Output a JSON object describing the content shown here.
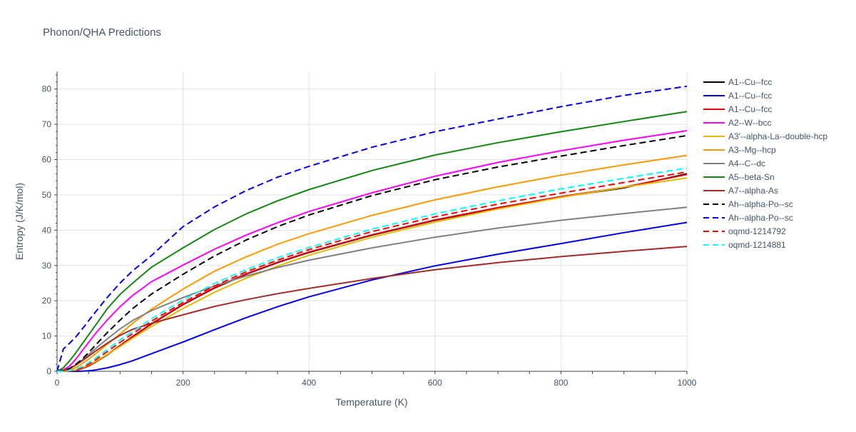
{
  "chart_data": {
    "type": "line",
    "title": "Phonon/QHA Predictions",
    "xlabel": "Temperature (K)",
    "ylabel": "Entropy (J/K/mol)",
    "xlim": [
      0,
      1000
    ],
    "ylim": [
      0,
      85
    ],
    "x_ticks": [
      0,
      200,
      400,
      600,
      800,
      1000
    ],
    "y_ticks": [
      0,
      10,
      20,
      30,
      40,
      50,
      60,
      70,
      80
    ],
    "grid": true,
    "legend_position": "right",
    "x": [
      0,
      10,
      20,
      30,
      40,
      50,
      60,
      80,
      100,
      120,
      150,
      200,
      250,
      300,
      350,
      400,
      500,
      600,
      700,
      800,
      900,
      1000
    ],
    "series": [
      {
        "name": "A1--Cu--fcc",
        "color": "#000000",
        "dash": "solid",
        "values": [
          0,
          0,
          0.1,
          0.3,
          0.8,
          1.5,
          2.5,
          4.7,
          7.2,
          9.8,
          13.4,
          18.9,
          23.6,
          27.5,
          30.8,
          33.7,
          38.6,
          42.8,
          46.3,
          49.4,
          52.0,
          56.0
        ]
      },
      {
        "name": "A1--Cu--fcc",
        "color": "#0000ee",
        "dash": "solid",
        "values": [
          0,
          0,
          0,
          0,
          0.05,
          0.15,
          0.35,
          1.0,
          1.9,
          3.0,
          5.0,
          8.3,
          11.8,
          15.2,
          18.3,
          21.1,
          25.9,
          29.9,
          33.2,
          36.2,
          39.3,
          42.2
        ]
      },
      {
        "name": "A1--Cu--fcc",
        "color": "#e8000b",
        "dash": "solid",
        "values": [
          0,
          0,
          0.1,
          0.3,
          0.8,
          1.5,
          2.5,
          4.8,
          7.3,
          9.9,
          13.5,
          19.0,
          23.7,
          27.6,
          30.9,
          33.8,
          38.7,
          42.9,
          46.4,
          49.5,
          52.2,
          55.8
        ]
      },
      {
        "name": "A2--W--bcc",
        "color": "#ff00ff",
        "dash": "solid",
        "values": [
          0,
          0.4,
          1.5,
          3.5,
          5.8,
          8.2,
          10.5,
          14.6,
          18.3,
          21.5,
          25.4,
          30.1,
          34.6,
          38.6,
          42.1,
          45.3,
          50.6,
          55.3,
          59.2,
          62.5,
          65.5,
          68.2
        ]
      },
      {
        "name": "A3'--alpha-La--double-hcp",
        "color": "#e6b800",
        "dash": "solid",
        "values": [
          0,
          0,
          0.1,
          0.4,
          1.0,
          1.8,
          2.7,
          4.8,
          7.0,
          9.4,
          12.7,
          17.8,
          22.4,
          26.4,
          29.8,
          32.9,
          38.0,
          42.3,
          46.0,
          49.3,
          52.2,
          54.8
        ]
      },
      {
        "name": "A3--Mg--hcp",
        "color": "#ff9900",
        "dash": "solid",
        "values": [
          0,
          0.1,
          0.4,
          1.1,
          2.2,
          3.4,
          4.8,
          7.7,
          10.6,
          13.6,
          17.6,
          23.3,
          28.4,
          32.4,
          36.0,
          39.0,
          44.2,
          48.6,
          52.3,
          55.6,
          58.5,
          61.2
        ]
      },
      {
        "name": "A4--C--dc",
        "color": "#808080",
        "dash": "solid",
        "values": [
          0,
          0.2,
          0.8,
          1.8,
          3.2,
          4.7,
          6.3,
          9.2,
          12.0,
          14.4,
          17.2,
          20.9,
          24.2,
          27.0,
          29.4,
          31.5,
          35.0,
          38.0,
          40.6,
          42.8,
          44.7,
          46.5
        ]
      },
      {
        "name": "A5--beta-Sn",
        "color": "#118811",
        "dash": "solid",
        "values": [
          0,
          1.0,
          3.0,
          5.3,
          7.8,
          10.3,
          12.8,
          17.8,
          21.8,
          25.0,
          29.5,
          35.0,
          40.2,
          44.6,
          48.3,
          51.5,
          56.9,
          61.3,
          64.8,
          67.9,
          70.8,
          73.6
        ]
      },
      {
        "name": "A7--alpha-As",
        "color": "#a52a2a",
        "dash": "solid",
        "values": [
          0,
          0.2,
          0.8,
          1.8,
          3.0,
          4.3,
          5.6,
          8.0,
          10.2,
          11.9,
          13.6,
          16.0,
          18.4,
          20.3,
          22.0,
          23.5,
          26.3,
          28.8,
          30.8,
          32.5,
          34.0,
          35.4
        ]
      },
      {
        "name": "Ah--alpha-Po--sc",
        "color": "#000000",
        "dash": "dash",
        "values": [
          0,
          0.2,
          0.8,
          2.0,
          3.5,
          5.3,
          7.2,
          11.0,
          14.5,
          17.8,
          21.9,
          27.5,
          32.7,
          37.2,
          41.0,
          44.3,
          49.8,
          54.3,
          57.9,
          61.0,
          64.0,
          66.8
        ]
      },
      {
        "name": "Ah--alpha-Po--sc",
        "color": "#0000ee",
        "dash": "dash",
        "values": [
          0,
          6.3,
          8.0,
          9.8,
          12.0,
          14.3,
          16.6,
          21.0,
          25.0,
          28.5,
          32.8,
          41.0,
          46.6,
          51.2,
          55.0,
          58.1,
          63.5,
          67.9,
          71.5,
          75.0,
          78.2,
          80.8
        ]
      },
      {
        "name": "oqmd-1214792",
        "color": "#ff0000",
        "dash": "dash",
        "values": [
          0,
          0,
          0.1,
          0.4,
          1.1,
          2.0,
          3.1,
          5.6,
          8.2,
          10.7,
          14.2,
          19.5,
          24.2,
          28.2,
          31.5,
          34.5,
          39.6,
          43.8,
          47.4,
          50.5,
          53.5,
          56.5
        ]
      },
      {
        "name": "oqmd-1214881",
        "color": "#00ffff",
        "dash": "dash",
        "values": [
          0,
          0,
          0.2,
          0.6,
          1.4,
          2.4,
          3.6,
          6.2,
          8.9,
          11.3,
          14.9,
          20.2,
          24.9,
          28.8,
          32.2,
          35.1,
          40.3,
          44.6,
          48.3,
          51.7,
          54.7,
          57.6
        ]
      }
    ]
  }
}
